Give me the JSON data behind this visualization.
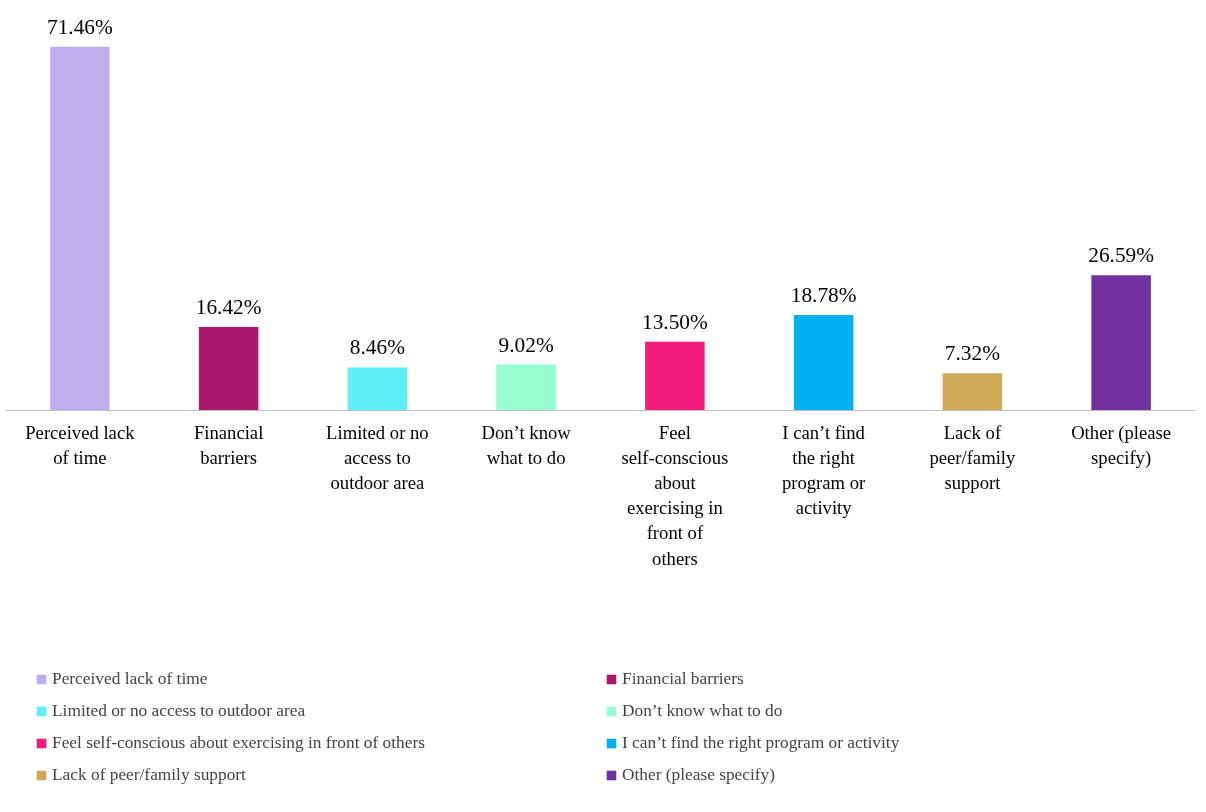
{
  "chart_data": {
    "type": "bar",
    "categories": [
      "Perceived lack of time",
      "Financial barriers",
      "Limited or no access to outdoor area",
      "Don’t know what to do",
      "Feel self-conscious about exercising in front of others",
      "I can’t find the right program or activity",
      "Lack of peer/family support",
      "Other (please specify)"
    ],
    "series": [
      {
        "name": "Perceived lack of time",
        "color": "#bfaeef",
        "values": [
          71.46,
          null,
          null,
          null,
          null,
          null,
          null,
          null
        ],
        "value_labels": [
          "71.46%",
          null,
          null,
          null,
          null,
          null,
          null,
          null
        ]
      },
      {
        "name": "Financial barriers",
        "color": "#a9186a",
        "values": [
          null,
          16.42,
          null,
          null,
          null,
          null,
          null,
          null
        ],
        "value_labels": [
          null,
          "16.42%",
          null,
          null,
          null,
          null,
          null,
          null
        ]
      },
      {
        "name": "Limited or no access to outdoor area",
        "color": "#5ef0f7",
        "values": [
          null,
          null,
          8.46,
          null,
          null,
          null,
          null,
          null
        ],
        "value_labels": [
          null,
          null,
          "8.46%",
          null,
          null,
          null,
          null,
          null
        ]
      },
      {
        "name": "Don’t know what to do",
        "color": "#96fcd2",
        "values": [
          null,
          null,
          null,
          9.02,
          null,
          null,
          null,
          null
        ],
        "value_labels": [
          null,
          null,
          null,
          "9.02%",
          null,
          null,
          null,
          null
        ]
      },
      {
        "name": "Feel self-conscious about exercising in front of others",
        "color": "#f21a7a",
        "values": [
          null,
          null,
          null,
          null,
          13.5,
          null,
          null,
          null
        ],
        "value_labels": [
          null,
          null,
          null,
          null,
          "13.50%",
          null,
          null,
          null
        ]
      },
      {
        "name": "I can’t find the right program or activity",
        "color": "#00b0f0",
        "values": [
          null,
          null,
          null,
          null,
          null,
          18.78,
          null,
          null
        ],
        "value_labels": [
          null,
          null,
          null,
          null,
          null,
          "18.78%",
          null,
          null
        ]
      },
      {
        "name": "Lack of peer/family support",
        "color": "#cfa855",
        "values": [
          null,
          null,
          null,
          null,
          null,
          null,
          7.32,
          null
        ],
        "value_labels": [
          null,
          null,
          null,
          null,
          null,
          null,
          "7.32%",
          null
        ]
      },
      {
        "name": "Other (please specify)",
        "color": "#7030a0",
        "values": [
          null,
          null,
          null,
          null,
          null,
          null,
          null,
          26.59
        ],
        "value_labels": [
          null,
          null,
          null,
          null,
          null,
          null,
          null,
          "26.59%"
        ]
      }
    ],
    "tick_labels": "x",
    "legend": "bottom"
  }
}
